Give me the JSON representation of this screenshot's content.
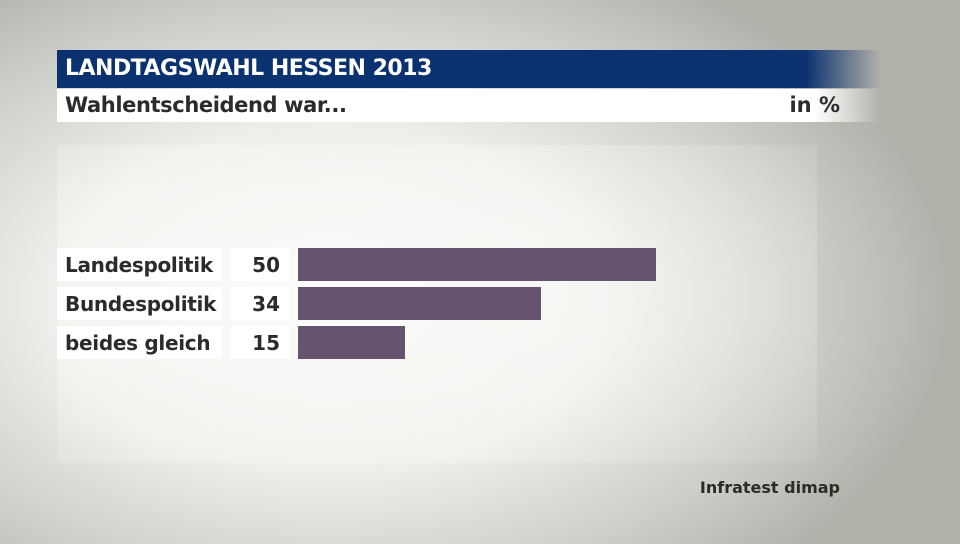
{
  "header": {
    "title": "LANDTAGSWAHL HESSEN 2013",
    "subtitle": "Wahlentscheidend war...",
    "unit": "in %"
  },
  "source": "Infratest dimap",
  "colors": {
    "title_bar": "#0b3270",
    "bar": "#66536f"
  },
  "chart_data": {
    "type": "bar",
    "orientation": "horizontal",
    "title": "Wahlentscheidend war...",
    "unit": "in %",
    "categories": [
      "Landespolitik",
      "Bundespolitik",
      "beides gleich"
    ],
    "values": [
      50,
      34,
      15
    ],
    "xlim": [
      0,
      50
    ],
    "grid": false
  }
}
